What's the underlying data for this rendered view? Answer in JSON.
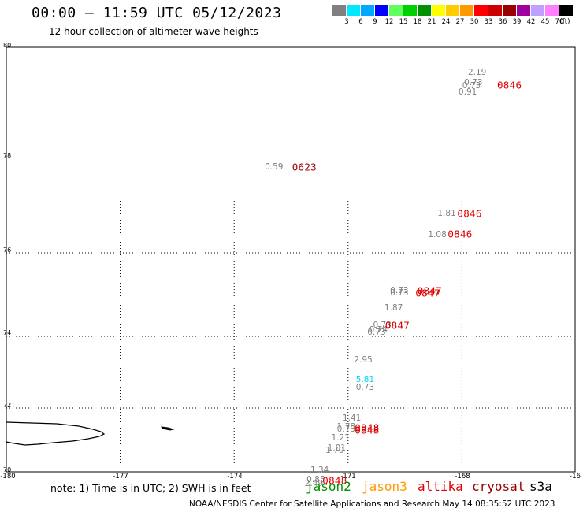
{
  "header": {
    "title": "00:00 – 11:59 UTC 05/12/2023",
    "subtitle": "12 hour collection of altimeter wave heights"
  },
  "scale": {
    "unit_label": "(ft)",
    "items": [
      {
        "label": "3",
        "color": "#808080"
      },
      {
        "label": "6",
        "color": "#00e8ff"
      },
      {
        "label": "9",
        "color": "#00a8ff"
      },
      {
        "label": "12",
        "color": "#0000ff"
      },
      {
        "label": "15",
        "color": "#60ff60"
      },
      {
        "label": "18",
        "color": "#00d000"
      },
      {
        "label": "21",
        "color": "#009000"
      },
      {
        "label": "24",
        "color": "#ffff00"
      },
      {
        "label": "27",
        "color": "#ffcc00"
      },
      {
        "label": "30",
        "color": "#ff9900"
      },
      {
        "label": "33",
        "color": "#ff0000"
      },
      {
        "label": "36",
        "color": "#cc0000"
      },
      {
        "label": "39",
        "color": "#990000"
      },
      {
        "label": "42",
        "color": "#a000a0"
      },
      {
        "label": "45",
        "color": "#c0a0ff"
      },
      {
        "label": "70",
        "color": "#ff80ff"
      },
      {
        "label": "",
        "color": "#000000"
      }
    ]
  },
  "axes": {
    "lat_labels": [
      "80",
      "78",
      "76",
      "74",
      "72",
      "70"
    ],
    "lon_labels": [
      "-180",
      "-177",
      "-174",
      "-171",
      "-168",
      "-16"
    ]
  },
  "observations": [
    {
      "lon": -167.6,
      "lat": 79.54,
      "value": "2.19",
      "color": "#808080"
    },
    {
      "lon": -167.7,
      "lat": 79.35,
      "value": "0.73",
      "color": "#808080"
    },
    {
      "lon": -167.75,
      "lat": 79.29,
      "value": "0.73",
      "color": "#808080"
    },
    {
      "lon": -167.85,
      "lat": 79.18,
      "value": "0.91",
      "color": "#808080"
    },
    {
      "lon": -172.95,
      "lat": 77.78,
      "value": "0.59",
      "color": "#808080"
    },
    {
      "lon": -168.4,
      "lat": 76.82,
      "value": "1.81",
      "color": "#808080"
    },
    {
      "lon": -168.65,
      "lat": 76.38,
      "value": "1.08",
      "color": "#808080"
    },
    {
      "lon": -169.65,
      "lat": 75.1,
      "value": "0.73",
      "color": "#808080"
    },
    {
      "lon": -169.65,
      "lat": 75.04,
      "value": "0.73",
      "color": "#808080"
    },
    {
      "lon": -169.8,
      "lat": 74.68,
      "value": "1.87",
      "color": "#808080"
    },
    {
      "lon": -170.1,
      "lat": 74.27,
      "value": "0.73",
      "color": "#808080"
    },
    {
      "lon": -170.2,
      "lat": 74.15,
      "value": "0.74",
      "color": "#808080"
    },
    {
      "lon": -170.25,
      "lat": 74.1,
      "value": "0.73",
      "color": "#808080"
    },
    {
      "lon": -170.6,
      "lat": 73.33,
      "value": "2.95",
      "color": "#808080"
    },
    {
      "lon": -170.55,
      "lat": 72.79,
      "value": "5.81",
      "color": "#00d8ff"
    },
    {
      "lon": -170.55,
      "lat": 72.58,
      "value": "0.73",
      "color": "#808080"
    },
    {
      "lon": -170.9,
      "lat": 71.69,
      "value": "1.41",
      "color": "#808080"
    },
    {
      "lon": -171.05,
      "lat": 71.41,
      "value": "1.78",
      "color": "#808080"
    },
    {
      "lon": -171.05,
      "lat": 71.33,
      "value": "0.73",
      "color": "#808080"
    },
    {
      "lon": -171.2,
      "lat": 71.06,
      "value": "1.21",
      "color": "#808080"
    },
    {
      "lon": -171.3,
      "lat": 70.75,
      "value": "1.01",
      "color": "#808080"
    },
    {
      "lon": -171.35,
      "lat": 70.67,
      "value": "1.70",
      "color": "#808080"
    },
    {
      "lon": -171.75,
      "lat": 70.06,
      "value": "1.34",
      "color": "#808080"
    },
    {
      "lon": -171.85,
      "lat": 69.76,
      "value": "0.85",
      "color": "#808080"
    },
    {
      "lon": -171.9,
      "lat": 69.63,
      "value": "2.49",
      "color": "#808080"
    }
  ],
  "time_labels": [
    {
      "lon": -166.75,
      "lat": 79.3,
      "text": "0846",
      "color": "#e00000"
    },
    {
      "lon": -172.15,
      "lat": 77.78,
      "text": "0623",
      "color": "#990000"
    },
    {
      "lon": -167.8,
      "lat": 76.81,
      "text": "0846",
      "color": "#e00000"
    },
    {
      "lon": -168.05,
      "lat": 76.39,
      "text": "0846",
      "color": "#e00000"
    },
    {
      "lon": -168.85,
      "lat": 75.1,
      "text": "0847",
      "color": "#e00000"
    },
    {
      "lon": -168.9,
      "lat": 75.04,
      "text": "0847",
      "color": "#e00000"
    },
    {
      "lon": -169.7,
      "lat": 74.27,
      "text": "0847",
      "color": "#e00000"
    },
    {
      "lon": -170.5,
      "lat": 71.38,
      "text": "0848",
      "color": "#e00000"
    },
    {
      "lon": -170.5,
      "lat": 71.32,
      "text": "0848",
      "color": "#e00000"
    },
    {
      "lon": -171.35,
      "lat": 69.73,
      "text": "0848",
      "color": "#e00000"
    }
  ],
  "footer": {
    "note": "note: 1) Time is in UTC; 2) SWH is in feet",
    "satellites": [
      {
        "name": "jason2",
        "color": "#0000dd"
      },
      {
        "name": "jason3",
        "color": "#009000"
      },
      {
        "name": "altika",
        "color": "#ff9900"
      },
      {
        "name": "cryosat",
        "color": "#e00000"
      },
      {
        "name": "s3a",
        "color": "#990000"
      }
    ],
    "credit": "NOAA/NESDIS Center for Satellite Applications and Research    May 14 08:35:52 UTC 2023"
  }
}
